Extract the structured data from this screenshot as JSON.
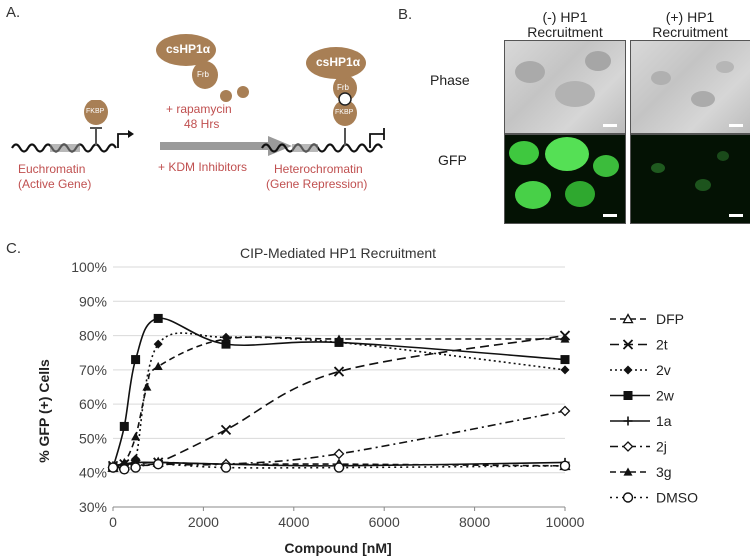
{
  "panels": {
    "a": "A.",
    "b": "B.",
    "c": "C."
  },
  "schematic": {
    "cshp1a": "csHP1α",
    "frb": "Frb",
    "fkbp": "FKBP",
    "rapamycin": "+ rapamycin",
    "hours": "48 Hrs",
    "kdm": "+ KDM Inhibitors",
    "left_caption_1": "Euchromatin",
    "left_caption_2": "(Active Gene)",
    "right_caption_1": "Heterochromatin",
    "right_caption_2": "(Gene Repression)",
    "colors": {
      "protein": "#a87f55",
      "text_red": "#c05050",
      "arrow": "#9a9a9a"
    }
  },
  "images": {
    "col_minus": [
      "(-) HP1",
      "Recruitment"
    ],
    "col_plus": [
      "(+) HP1",
      "Recruitment"
    ],
    "row_phase": "Phase",
    "row_gfp": "GFP"
  },
  "chart_data": {
    "type": "line",
    "title": "CIP-Mediated HP1 Recruitment",
    "xlabel": "Compound [nM]",
    "ylabel": "% GFP (+) Cells",
    "xlim": [
      0,
      10000
    ],
    "ylim": [
      30,
      100
    ],
    "xticks": [
      "0",
      "2000",
      "4000",
      "6000",
      "8000",
      "10000"
    ],
    "yticks": [
      "30%",
      "40%",
      "50%",
      "60%",
      "70%",
      "80%",
      "90%",
      "100%"
    ],
    "legend_position": "right",
    "series": [
      {
        "name": "DFP",
        "marker": "triangle-open",
        "dash": "6,4",
        "points": [
          [
            0,
            41.5
          ],
          [
            250,
            42
          ],
          [
            500,
            42.5
          ],
          [
            1000,
            43
          ],
          [
            2500,
            42.5
          ],
          [
            5000,
            42.5
          ],
          [
            10000,
            42
          ]
        ]
      },
      {
        "name": "2t",
        "marker": "x",
        "dash": "9,5",
        "points": [
          [
            0,
            42
          ],
          [
            250,
            42.5
          ],
          [
            500,
            42.5
          ],
          [
            1000,
            43
          ],
          [
            2500,
            52.5
          ],
          [
            5000,
            69.5
          ],
          [
            10000,
            80
          ]
        ]
      },
      {
        "name": "2v",
        "marker": "diamond-filled",
        "dash": "2,3",
        "points": [
          [
            0,
            41.5
          ],
          [
            250,
            42.5
          ],
          [
            500,
            44
          ],
          [
            1000,
            77.5
          ],
          [
            2500,
            79.5
          ],
          [
            5000,
            78
          ],
          [
            10000,
            70
          ]
        ]
      },
      {
        "name": "2w",
        "marker": "square-filled",
        "dash": "",
        "points": [
          [
            0,
            41.5
          ],
          [
            250,
            53.5
          ],
          [
            500,
            73
          ],
          [
            1000,
            85
          ],
          [
            2500,
            77.5
          ],
          [
            5000,
            78
          ],
          [
            10000,
            73
          ]
        ]
      },
      {
        "name": "1a",
        "marker": "plus",
        "dash": "",
        "points": [
          [
            0,
            42
          ],
          [
            250,
            42.5
          ],
          [
            500,
            43
          ],
          [
            1000,
            43
          ],
          [
            2500,
            42.5
          ],
          [
            5000,
            42
          ],
          [
            10000,
            43
          ]
        ]
      },
      {
        "name": "2j",
        "marker": "diamond-open",
        "dash": "8,4,2,4",
        "points": [
          [
            0,
            41.5
          ],
          [
            250,
            41.5
          ],
          [
            500,
            42
          ],
          [
            1000,
            42.5
          ],
          [
            2500,
            42.5
          ],
          [
            5000,
            45.5
          ],
          [
            10000,
            58
          ]
        ]
      },
      {
        "name": "3g",
        "marker": "triangle-filled",
        "dash": "6,4",
        "points": [
          [
            0,
            41.5
          ],
          [
            250,
            43
          ],
          [
            500,
            50.5
          ],
          [
            750,
            65
          ],
          [
            1000,
            71
          ],
          [
            2500,
            79
          ],
          [
            5000,
            79
          ],
          [
            10000,
            79
          ]
        ]
      },
      {
        "name": "DMSO",
        "marker": "circle-open",
        "dash": "2,4",
        "points": [
          [
            0,
            41.5
          ],
          [
            250,
            41
          ],
          [
            500,
            41.5
          ],
          [
            1000,
            42.5
          ],
          [
            2500,
            41.5
          ],
          [
            5000,
            41.5
          ],
          [
            10000,
            42
          ]
        ]
      }
    ],
    "colors": {
      "line": "#111111",
      "grid": "#d9d9d9"
    }
  }
}
